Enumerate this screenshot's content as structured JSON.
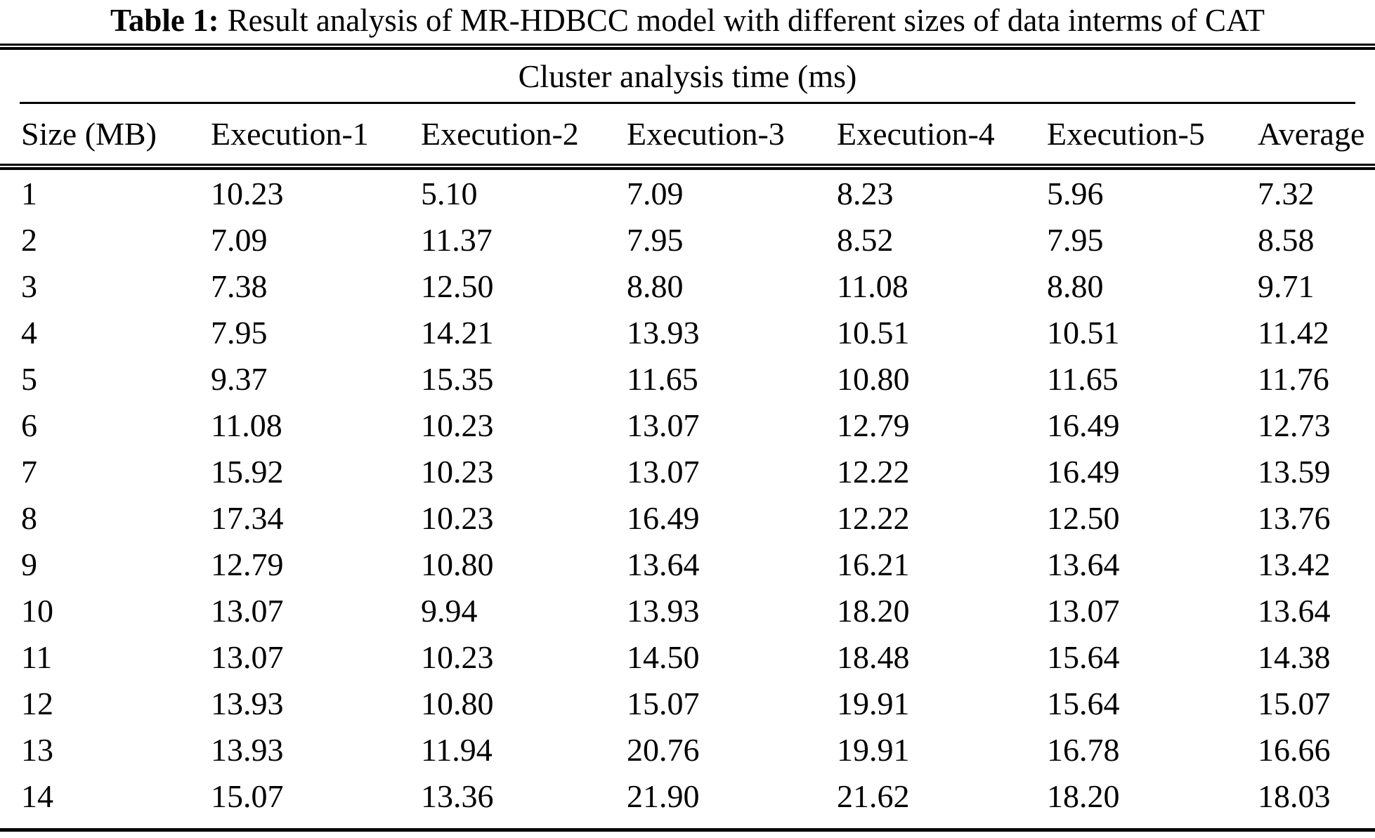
{
  "colors": {
    "text": "#000000",
    "background": "#ffffff",
    "rule": "#000000"
  },
  "caption": {
    "label": "Table 1:",
    "text": "Result analysis of MR-HDBCC model with different sizes of data interms of CAT"
  },
  "chart_data": {
    "type": "table",
    "title": "Table 1: Result analysis of MR-HDBCC model with different sizes of data interms of CAT",
    "group_header": "Cluster analysis time (ms)",
    "columns": [
      "Size (MB)",
      "Execution-1",
      "Execution-2",
      "Execution-3",
      "Execution-4",
      "Execution-5",
      "Average"
    ],
    "rows": [
      [
        "1",
        "10.23",
        "5.10",
        "7.09",
        "8.23",
        "5.96",
        "7.32"
      ],
      [
        "2",
        "7.09",
        "11.37",
        "7.95",
        "8.52",
        "7.95",
        "8.58"
      ],
      [
        "3",
        "7.38",
        "12.50",
        "8.80",
        "11.08",
        "8.80",
        "9.71"
      ],
      [
        "4",
        "7.95",
        "14.21",
        "13.93",
        "10.51",
        "10.51",
        "11.42"
      ],
      [
        "5",
        "9.37",
        "15.35",
        "11.65",
        "10.80",
        "11.65",
        "11.76"
      ],
      [
        "6",
        "11.08",
        "10.23",
        "13.07",
        "12.79",
        "16.49",
        "12.73"
      ],
      [
        "7",
        "15.92",
        "10.23",
        "13.07",
        "12.22",
        "16.49",
        "13.59"
      ],
      [
        "8",
        "17.34",
        "10.23",
        "16.49",
        "12.22",
        "12.50",
        "13.76"
      ],
      [
        "9",
        "12.79",
        "10.80",
        "13.64",
        "16.21",
        "13.64",
        "13.42"
      ],
      [
        "10",
        "13.07",
        "9.94",
        "13.93",
        "18.20",
        "13.07",
        "13.64"
      ],
      [
        "11",
        "13.07",
        "10.23",
        "14.50",
        "18.48",
        "15.64",
        "14.38"
      ],
      [
        "12",
        "13.93",
        "10.80",
        "15.07",
        "19.91",
        "15.64",
        "15.07"
      ],
      [
        "13",
        "13.93",
        "11.94",
        "20.76",
        "19.91",
        "16.78",
        "16.66"
      ],
      [
        "14",
        "15.07",
        "13.36",
        "21.90",
        "21.62",
        "18.20",
        "18.03"
      ]
    ]
  }
}
